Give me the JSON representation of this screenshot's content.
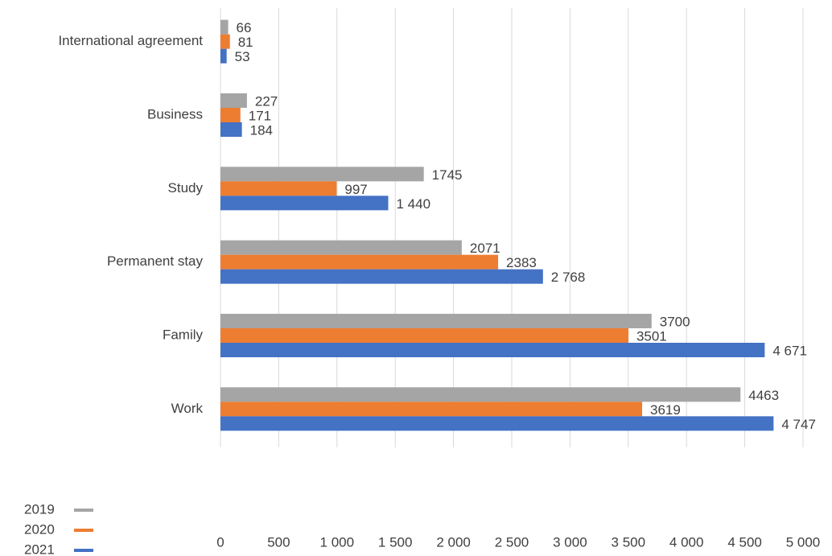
{
  "chart_data": {
    "type": "bar",
    "orientation": "horizontal",
    "categories": [
      "International agreement",
      "Business",
      "Study",
      "Permanent stay",
      "Family",
      "Work"
    ],
    "series": [
      {
        "name": "2019",
        "color": "#a5a5a5",
        "values": [
          66,
          227,
          1745,
          2071,
          3700,
          4463
        ]
      },
      {
        "name": "2020",
        "color": "#ed7d31",
        "values": [
          81,
          171,
          997,
          2383,
          3501,
          3619
        ]
      },
      {
        "name": "2021",
        "color": "#4472c4",
        "values": [
          53,
          184,
          1440,
          2768,
          4671,
          4747
        ],
        "value_labels": [
          "53",
          "184",
          "1 440",
          "2 768",
          "4 671",
          "4 747"
        ]
      }
    ],
    "xlim": [
      0,
      5000
    ],
    "xticks": [
      0,
      500,
      {
        "value": 1000,
        "label": "1 000"
      },
      {
        "value": 1500,
        "label": "1 500"
      },
      {
        "value": 2000,
        "label": "2 000"
      },
      {
        "value": 2500,
        "label": "2 500"
      },
      {
        "value": 3000,
        "label": "3 000"
      },
      {
        "value": 3500,
        "label": "3 500"
      },
      {
        "value": 4000,
        "label": "4 000"
      },
      {
        "value": 4500,
        "label": "4 500"
      },
      {
        "value": 5000,
        "label": "5 000"
      }
    ],
    "grid": true,
    "legend": "bottom-left"
  }
}
